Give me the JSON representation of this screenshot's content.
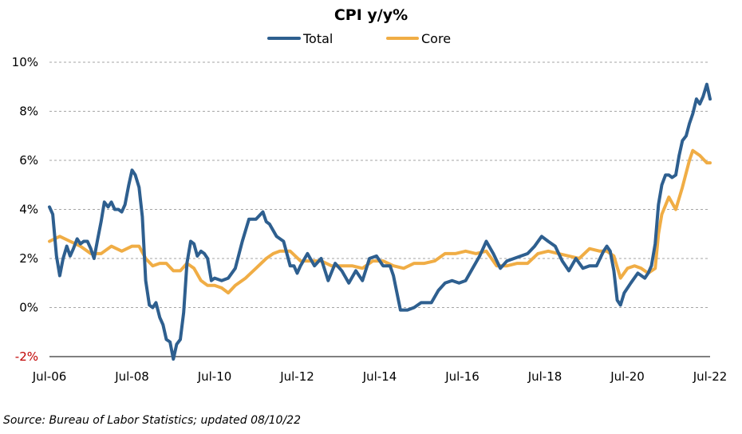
{
  "chart_data": {
    "type": "line",
    "title": "CPI y/y%",
    "xlabel": "",
    "ylabel": "",
    "ylim": [
      -2,
      10
    ],
    "y_ticks": [
      "-2%",
      "0%",
      "2%",
      "4%",
      "6%",
      "8%",
      "10%"
    ],
    "x_ticks": [
      "Jul-06",
      "Jul-08",
      "Jul-10",
      "Jul-12",
      "Jul-14",
      "Jul-16",
      "Jul-18",
      "Jul-20",
      "Jul-22"
    ],
    "x_range": [
      2006.5,
      2022.5
    ],
    "grid": "horizontal-dashed",
    "legend": "top-center",
    "colors": {
      "Total": "#2e5f8f",
      "Core": "#f0ad45",
      "negative_tick": "#c00000"
    },
    "series": [
      {
        "name": "Total",
        "x": [
          2006.5,
          2006.58,
          2006.67,
          2006.75,
          2006.83,
          2006.92,
          2007.0,
          2007.08,
          2007.17,
          2007.25,
          2007.33,
          2007.42,
          2007.5,
          2007.58,
          2007.67,
          2007.75,
          2007.83,
          2007.92,
          2008.0,
          2008.08,
          2008.17,
          2008.25,
          2008.33,
          2008.42,
          2008.5,
          2008.58,
          2008.67,
          2008.75,
          2008.83,
          2008.92,
          2009.0,
          2009.08,
          2009.17,
          2009.25,
          2009.33,
          2009.42,
          2009.5,
          2009.58,
          2009.67,
          2009.75,
          2009.83,
          2009.92,
          2010.0,
          2010.08,
          2010.17,
          2010.25,
          2010.33,
          2010.42,
          2010.5,
          2010.67,
          2010.83,
          2011.0,
          2011.17,
          2011.33,
          2011.5,
          2011.67,
          2011.75,
          2011.83,
          2012.0,
          2012.17,
          2012.33,
          2012.42,
          2012.5,
          2012.58,
          2012.75,
          2012.92,
          2013.08,
          2013.25,
          2013.42,
          2013.58,
          2013.75,
          2013.92,
          2014.08,
          2014.25,
          2014.42,
          2014.58,
          2014.75,
          2014.83,
          2015.0,
          2015.17,
          2015.33,
          2015.5,
          2015.58,
          2015.75,
          2015.92,
          2016.08,
          2016.25,
          2016.42,
          2016.58,
          2016.75,
          2016.92,
          2017.08,
          2017.25,
          2017.42,
          2017.58,
          2017.75,
          2017.92,
          2018.08,
          2018.25,
          2018.42,
          2018.58,
          2018.75,
          2018.92,
          2019.08,
          2019.25,
          2019.42,
          2019.58,
          2019.75,
          2019.92,
          2020.0,
          2020.08,
          2020.17,
          2020.25,
          2020.33,
          2020.42,
          2020.58,
          2020.75,
          2020.92,
          2021.0,
          2021.08,
          2021.17,
          2021.25,
          2021.33,
          2021.42,
          2021.5,
          2021.58,
          2021.67,
          2021.75,
          2021.83,
          2021.92,
          2022.0,
          2022.08,
          2022.17,
          2022.25,
          2022.33,
          2022.42,
          2022.5
        ],
        "values": [
          4.1,
          3.8,
          2.1,
          1.3,
          2.0,
          2.5,
          2.1,
          2.4,
          2.8,
          2.6,
          2.7,
          2.7,
          2.4,
          2.0,
          2.8,
          3.5,
          4.3,
          4.1,
          4.3,
          4.0,
          4.0,
          3.9,
          4.2,
          5.0,
          5.6,
          5.4,
          4.9,
          3.7,
          1.1,
          0.1,
          0.0,
          0.2,
          -0.4,
          -0.7,
          -1.3,
          -1.4,
          -2.1,
          -1.5,
          -1.3,
          -0.2,
          1.8,
          2.7,
          2.6,
          2.1,
          2.3,
          2.2,
          2.0,
          1.1,
          1.2,
          1.1,
          1.2,
          1.6,
          2.7,
          3.6,
          3.6,
          3.9,
          3.5,
          3.4,
          2.9,
          2.7,
          1.7,
          1.7,
          1.4,
          1.7,
          2.2,
          1.7,
          2.0,
          1.1,
          1.8,
          1.5,
          1.0,
          1.5,
          1.1,
          2.0,
          2.1,
          1.7,
          1.7,
          1.3,
          -0.1,
          -0.1,
          0.0,
          0.2,
          0.2,
          0.2,
          0.7,
          1.0,
          1.1,
          1.0,
          1.1,
          1.6,
          2.1,
          2.7,
          2.2,
          1.6,
          1.9,
          2.0,
          2.1,
          2.2,
          2.5,
          2.9,
          2.7,
          2.5,
          1.9,
          1.5,
          2.0,
          1.6,
          1.7,
          1.7,
          2.3,
          2.5,
          2.3,
          1.5,
          0.3,
          0.1,
          0.6,
          1.0,
          1.4,
          1.2,
          1.4,
          1.7,
          2.6,
          4.2,
          5.0,
          5.4,
          5.4,
          5.3,
          5.4,
          6.2,
          6.8,
          7.0,
          7.5,
          7.9,
          8.5,
          8.3,
          8.6,
          9.1,
          8.5
        ]
      },
      {
        "name": "Core",
        "x": [
          2006.5,
          2006.75,
          2007.0,
          2007.25,
          2007.5,
          2007.75,
          2008.0,
          2008.25,
          2008.5,
          2008.67,
          2008.83,
          2009.0,
          2009.17,
          2009.33,
          2009.5,
          2009.67,
          2009.83,
          2010.0,
          2010.17,
          2010.33,
          2010.5,
          2010.67,
          2010.83,
          2011.0,
          2011.25,
          2011.5,
          2011.75,
          2011.92,
          2012.08,
          2012.33,
          2012.58,
          2012.83,
          2013.08,
          2013.33,
          2013.58,
          2013.83,
          2014.08,
          2014.33,
          2014.58,
          2014.83,
          2015.08,
          2015.33,
          2015.58,
          2015.83,
          2016.08,
          2016.33,
          2016.58,
          2016.83,
          2017.08,
          2017.33,
          2017.58,
          2017.83,
          2018.08,
          2018.33,
          2018.58,
          2018.83,
          2019.08,
          2019.33,
          2019.58,
          2019.83,
          2020.0,
          2020.17,
          2020.33,
          2020.5,
          2020.67,
          2020.83,
          2021.0,
          2021.17,
          2021.25,
          2021.33,
          2021.5,
          2021.67,
          2021.83,
          2022.0,
          2022.08,
          2022.25,
          2022.42,
          2022.5
        ],
        "values": [
          2.7,
          2.9,
          2.7,
          2.5,
          2.2,
          2.2,
          2.5,
          2.3,
          2.5,
          2.5,
          2.0,
          1.7,
          1.8,
          1.8,
          1.5,
          1.5,
          1.8,
          1.6,
          1.1,
          0.9,
          0.9,
          0.8,
          0.6,
          0.9,
          1.2,
          1.6,
          2.0,
          2.2,
          2.3,
          2.3,
          1.9,
          1.9,
          1.9,
          1.7,
          1.7,
          1.7,
          1.6,
          1.9,
          1.9,
          1.7,
          1.6,
          1.8,
          1.8,
          1.9,
          2.2,
          2.2,
          2.3,
          2.2,
          2.3,
          1.7,
          1.7,
          1.8,
          1.8,
          2.2,
          2.3,
          2.2,
          2.1,
          2.0,
          2.4,
          2.3,
          2.3,
          2.1,
          1.2,
          1.6,
          1.7,
          1.6,
          1.4,
          1.6,
          3.0,
          3.8,
          4.5,
          4.0,
          4.9,
          6.0,
          6.4,
          6.2,
          5.9,
          5.9
        ]
      }
    ]
  },
  "source": "Source: Bureau of Labor Statistics; updated 08/10/22"
}
